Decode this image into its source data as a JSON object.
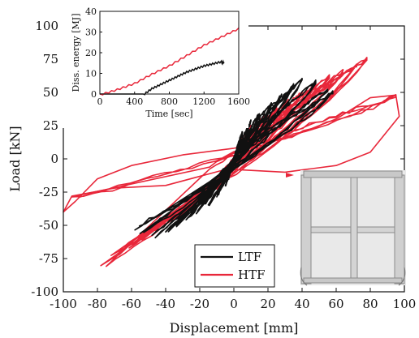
{
  "chart_data": [
    {
      "type": "line",
      "xlabel": "Displacement [mm]",
      "ylabel": "Load [kN]",
      "xlim": [
        -100,
        100
      ],
      "ylim": [
        -100,
        100
      ],
      "xticks": [
        -100,
        -80,
        -60,
        -40,
        -20,
        0,
        20,
        40,
        60,
        80,
        100
      ],
      "yticks": [
        -100,
        -75,
        -50,
        -25,
        0,
        25,
        50,
        75,
        100
      ],
      "colors": {
        "LTF": "#111111",
        "HTF": "#e8273a"
      },
      "legend": {
        "position": "bottom-center",
        "entries": [
          "LTF",
          "HTF"
        ]
      },
      "series": [
        {
          "name": "LTF",
          "amplitudes_mm": [
            5,
            10,
            15,
            22,
            28,
            35,
            40,
            48,
            55,
            58
          ],
          "peak_load_kN": [
            20,
            28,
            34,
            42,
            48,
            55,
            60,
            58,
            52,
            50
          ],
          "min_load_kN": [
            -20,
            -28,
            -34,
            -40,
            -45,
            -50,
            -55,
            -58,
            -55,
            -52
          ],
          "unload_to_kN": [
            -5,
            30
          ]
        },
        {
          "name": "HTF",
          "amplitudes_mm": [
            5,
            10,
            18,
            25,
            32,
            40,
            48,
            56,
            64,
            72,
            78,
            95
          ],
          "peak_load_kN": [
            16,
            24,
            32,
            38,
            44,
            50,
            56,
            62,
            66,
            70,
            75,
            47
          ],
          "min_load_kN": [
            -16,
            -24,
            -30,
            -36,
            -42,
            -48,
            -54,
            -60,
            -66,
            -72,
            -80,
            -30
          ],
          "unload_to_kN": [
            10,
            47
          ]
        }
      ]
    },
    {
      "type": "line",
      "xlabel": "Time [sec]",
      "ylabel": "Diss. energy [MJ]",
      "xlim": [
        0,
        1600
      ],
      "ylim": [
        0,
        40
      ],
      "xticks": [
        0,
        400,
        800,
        1200,
        1600
      ],
      "yticks": [
        0,
        10,
        20,
        30,
        40
      ],
      "series": [
        {
          "name": "LTF",
          "x": [
            0,
            500,
            600,
            700,
            800,
            900,
            1000,
            1100,
            1200,
            1300,
            1400,
            1430
          ],
          "y": [
            0,
            0,
            3,
            5,
            7,
            9,
            11,
            12.5,
            14,
            15,
            16,
            15.5
          ]
        },
        {
          "name": "HTF",
          "x": [
            0,
            200,
            400,
            600,
            800,
            1000,
            1200,
            1400,
            1600
          ],
          "y": [
            0,
            2.5,
            5.5,
            10,
            14,
            19,
            24,
            28,
            32
          ]
        }
      ]
    }
  ]
}
